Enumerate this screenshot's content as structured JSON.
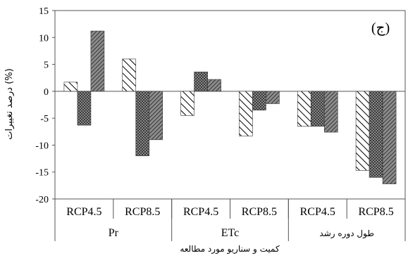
{
  "chart_data": {
    "type": "bar",
    "panel_label": "(ج)",
    "ylabel": "درصد تغییرات (%)",
    "xlabel": "کمیت و سناریو مورد مطالعه",
    "ylim": [
      -20,
      15
    ],
    "yticks": [
      15,
      10,
      5,
      0,
      -5,
      -10,
      -15,
      -20
    ],
    "grid": false,
    "legend": "none",
    "groups": [
      {
        "label": "Pr",
        "scenarios": [
          "RCP4.5",
          "RCP8.5"
        ]
      },
      {
        "label": "ETc",
        "scenarios": [
          "RCP4.5",
          "RCP8.5"
        ]
      },
      {
        "label": "طول دوره رشد",
        "scenarios": [
          "RCP4.5",
          "RCP8.5"
        ]
      }
    ],
    "categories": [
      "RCP4.5",
      "RCP8.5",
      "RCP4.5",
      "RCP8.5",
      "RCP4.5",
      "RCP8.5"
    ],
    "series": [
      {
        "values": [
          1.7,
          6.0,
          -4.5,
          -8.3,
          -6.5,
          -14.7
        ],
        "pattern": "wide-diagonal-hatch"
      },
      {
        "values": [
          -6.3,
          -12.0,
          3.6,
          -3.5,
          -6.5,
          -16.0
        ],
        "pattern": "dark-crosshatch"
      },
      {
        "values": [
          11.2,
          -9.0,
          2.2,
          -2.3,
          -7.6,
          -17.2
        ],
        "pattern": "dense-diagonal-hatch"
      }
    ]
  }
}
